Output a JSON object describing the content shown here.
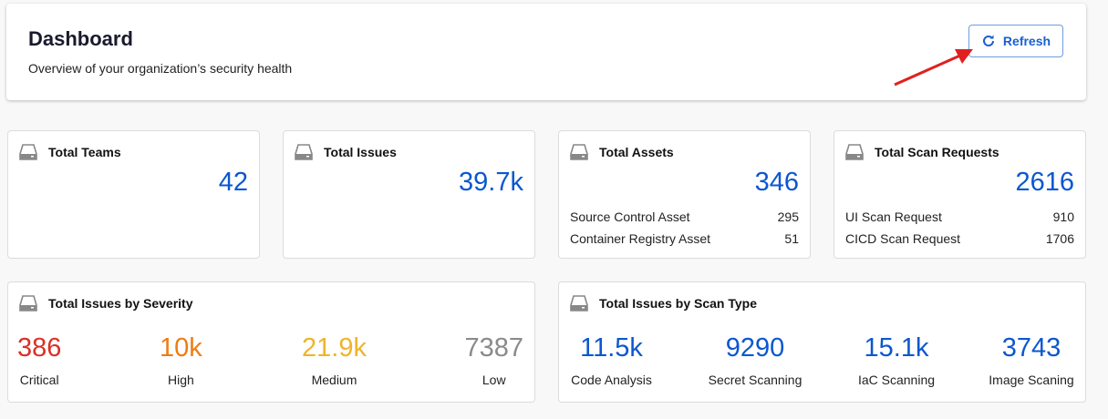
{
  "header": {
    "title": "Dashboard",
    "subtitle": "Overview of your organization’s security health",
    "refresh_label": "Refresh"
  },
  "cards": {
    "teams": {
      "title": "Total Teams",
      "value": "42"
    },
    "issues": {
      "title": "Total Issues",
      "value": "39.7k"
    },
    "assets": {
      "title": "Total Assets",
      "value": "346",
      "rows": [
        {
          "label": "Source Control Asset",
          "value": "295"
        },
        {
          "label": "Container Registry Asset",
          "value": "51"
        }
      ]
    },
    "scans": {
      "title": "Total Scan Requests",
      "value": "2616",
      "rows": [
        {
          "label": "UI Scan Request",
          "value": "910"
        },
        {
          "label": "CICD Scan Request",
          "value": "1706"
        }
      ]
    },
    "severity": {
      "title": "Total Issues by Severity",
      "items": [
        {
          "value": "386",
          "label": "Critical",
          "color": "#d93025"
        },
        {
          "value": "10k",
          "label": "High",
          "color": "#f07c10"
        },
        {
          "value": "21.9k",
          "label": "Medium",
          "color": "#f0b429"
        },
        {
          "value": "7387",
          "label": "Low",
          "color": "#8a8a8a"
        }
      ]
    },
    "scan_type": {
      "title": "Total Issues by Scan Type",
      "items": [
        {
          "value": "11.5k",
          "label": "Code Analysis"
        },
        {
          "value": "9290",
          "label": "Secret Scanning"
        },
        {
          "value": "15.1k",
          "label": "IaC Scanning"
        },
        {
          "value": "3743",
          "label": "Image Scaning"
        }
      ]
    }
  }
}
